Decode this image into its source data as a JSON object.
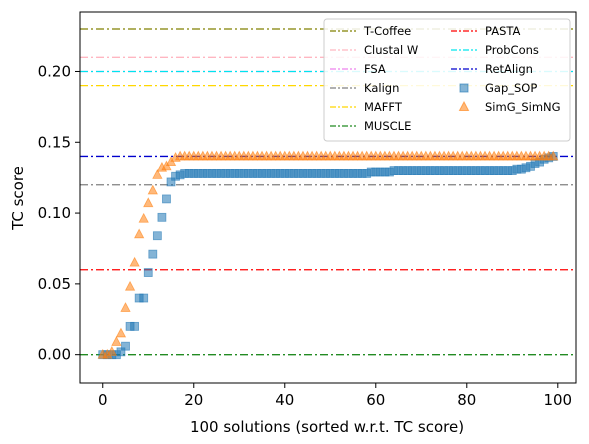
{
  "chart_data": {
    "type": "scatter",
    "xlabel": "100 solutions (sorted w.r.t. TC score)",
    "ylabel": "TC score",
    "xlim": [
      -5,
      104
    ],
    "ylim": [
      -0.02,
      0.242
    ],
    "xticks": [
      0,
      20,
      40,
      60,
      80,
      100
    ],
    "yticks": [
      0.0,
      0.05,
      0.1,
      0.15,
      0.2
    ],
    "ytick_labels": [
      "0.00",
      "0.05",
      "0.10",
      "0.15",
      "0.20"
    ],
    "legend_position": "top-right",
    "reference_lines": [
      {
        "name": "T-Coffee",
        "value": 0.23,
        "color": "#808000"
      },
      {
        "name": "Clustal W",
        "value": 0.21,
        "color": "#ffb6c1"
      },
      {
        "name": "FSA",
        "value": 0.2,
        "color": "#ee82ee"
      },
      {
        "name": "Kalign",
        "value": 0.12,
        "color": "#808080"
      },
      {
        "name": "MAFFT",
        "value": 0.19,
        "color": "#ffd700"
      },
      {
        "name": "MUSCLE",
        "value": 0.0,
        "color": "#228b22"
      },
      {
        "name": "PASTA",
        "value": 0.06,
        "color": "#ff0000"
      },
      {
        "name": "ProbCons",
        "value": 0.2,
        "color": "#00e5ee"
      },
      {
        "name": "RetAlign",
        "value": 0.14,
        "color": "#0000cd"
      }
    ],
    "series": [
      {
        "name": "Gap_SOP",
        "marker": "square",
        "color": "#1f77b4",
        "x": [
          0,
          1,
          2,
          3,
          4,
          5,
          6,
          7,
          8,
          9,
          10,
          11,
          12,
          13,
          14,
          15,
          16,
          17,
          18,
          19,
          20,
          21,
          22,
          23,
          24,
          25,
          26,
          27,
          28,
          29,
          30,
          31,
          32,
          33,
          34,
          35,
          36,
          37,
          38,
          39,
          40,
          41,
          42,
          43,
          44,
          45,
          46,
          47,
          48,
          49,
          50,
          51,
          52,
          53,
          54,
          55,
          56,
          57,
          58,
          59,
          60,
          61,
          62,
          63,
          64,
          65,
          66,
          67,
          68,
          69,
          70,
          71,
          72,
          73,
          74,
          75,
          76,
          77,
          78,
          79,
          80,
          81,
          82,
          83,
          84,
          85,
          86,
          87,
          88,
          89,
          90,
          91,
          92,
          93,
          94,
          95,
          96,
          97,
          98,
          99
        ],
        "y": [
          0,
          0,
          0,
          0,
          0.002,
          0.006,
          0.02,
          0.02,
          0.04,
          0.04,
          0.058,
          0.071,
          0.084,
          0.097,
          0.11,
          0.122,
          0.126,
          0.127,
          0.128,
          0.128,
          0.128,
          0.128,
          0.128,
          0.128,
          0.128,
          0.128,
          0.128,
          0.128,
          0.128,
          0.128,
          0.128,
          0.128,
          0.128,
          0.128,
          0.128,
          0.128,
          0.128,
          0.128,
          0.128,
          0.128,
          0.128,
          0.128,
          0.128,
          0.128,
          0.128,
          0.128,
          0.128,
          0.128,
          0.128,
          0.128,
          0.128,
          0.128,
          0.128,
          0.128,
          0.128,
          0.128,
          0.128,
          0.128,
          0.128,
          0.129,
          0.129,
          0.129,
          0.129,
          0.129,
          0.13,
          0.13,
          0.13,
          0.13,
          0.13,
          0.13,
          0.13,
          0.13,
          0.13,
          0.13,
          0.13,
          0.13,
          0.13,
          0.13,
          0.13,
          0.13,
          0.13,
          0.13,
          0.13,
          0.13,
          0.13,
          0.13,
          0.13,
          0.13,
          0.13,
          0.13,
          0.13,
          0.131,
          0.131,
          0.132,
          0.133,
          0.135,
          0.136,
          0.138,
          0.139,
          0.14
        ]
      },
      {
        "name": "SimG_SimNG",
        "marker": "triangle",
        "color": "#ff7f0e",
        "x": [
          0,
          1,
          2,
          3,
          4,
          5,
          6,
          7,
          8,
          9,
          10,
          11,
          12,
          13,
          14,
          15,
          16,
          17,
          18,
          19,
          20,
          21,
          22,
          23,
          24,
          25,
          26,
          27,
          28,
          29,
          30,
          31,
          32,
          33,
          34,
          35,
          36,
          37,
          38,
          39,
          40,
          41,
          42,
          43,
          44,
          45,
          46,
          47,
          48,
          49,
          50,
          51,
          52,
          53,
          54,
          55,
          56,
          57,
          58,
          59,
          60,
          61,
          62,
          63,
          64,
          65,
          66,
          67,
          68,
          69,
          70,
          71,
          72,
          73,
          74,
          75,
          76,
          77,
          78,
          79,
          80,
          81,
          82,
          83,
          84,
          85,
          86,
          87,
          88,
          89,
          90,
          91,
          92,
          93,
          94,
          95,
          96,
          97,
          98,
          99
        ],
        "y": [
          0,
          0,
          0.002,
          0.009,
          0.015,
          0.033,
          0.048,
          0.065,
          0.085,
          0.096,
          0.107,
          0.116,
          0.127,
          0.132,
          0.133,
          0.136,
          0.139,
          0.14,
          0.14,
          0.14,
          0.14,
          0.14,
          0.14,
          0.14,
          0.14,
          0.14,
          0.14,
          0.14,
          0.14,
          0.14,
          0.14,
          0.14,
          0.14,
          0.14,
          0.14,
          0.14,
          0.14,
          0.14,
          0.14,
          0.14,
          0.14,
          0.14,
          0.14,
          0.14,
          0.14,
          0.14,
          0.14,
          0.14,
          0.14,
          0.14,
          0.14,
          0.14,
          0.14,
          0.14,
          0.14,
          0.14,
          0.14,
          0.14,
          0.14,
          0.14,
          0.14,
          0.14,
          0.14,
          0.14,
          0.14,
          0.14,
          0.14,
          0.14,
          0.14,
          0.14,
          0.14,
          0.14,
          0.14,
          0.14,
          0.14,
          0.14,
          0.14,
          0.14,
          0.14,
          0.14,
          0.14,
          0.14,
          0.14,
          0.14,
          0.14,
          0.14,
          0.14,
          0.14,
          0.14,
          0.14,
          0.14,
          0.14,
          0.14,
          0.14,
          0.14,
          0.14,
          0.14,
          0.14,
          0.14,
          0.14
        ]
      }
    ],
    "legend_items": [
      {
        "name": "T-Coffee",
        "kind": "line",
        "color": "#808000"
      },
      {
        "name": "PASTA",
        "kind": "line",
        "color": "#ff0000"
      },
      {
        "name": "Clustal W",
        "kind": "line",
        "color": "#ffb6c1"
      },
      {
        "name": "ProbCons",
        "kind": "line",
        "color": "#00e5ee"
      },
      {
        "name": "FSA",
        "kind": "line",
        "color": "#ee82ee"
      },
      {
        "name": "RetAlign",
        "kind": "line",
        "color": "#0000cd"
      },
      {
        "name": "Kalign",
        "kind": "line",
        "color": "#808080"
      },
      {
        "name": "Gap_SOP",
        "kind": "square",
        "color": "#1f77b4"
      },
      {
        "name": "MAFFT",
        "kind": "line",
        "color": "#ffd700"
      },
      {
        "name": "SimG_SimNG",
        "kind": "triangle",
        "color": "#ff7f0e"
      },
      {
        "name": "MUSCLE",
        "kind": "line",
        "color": "#228b22"
      }
    ]
  }
}
